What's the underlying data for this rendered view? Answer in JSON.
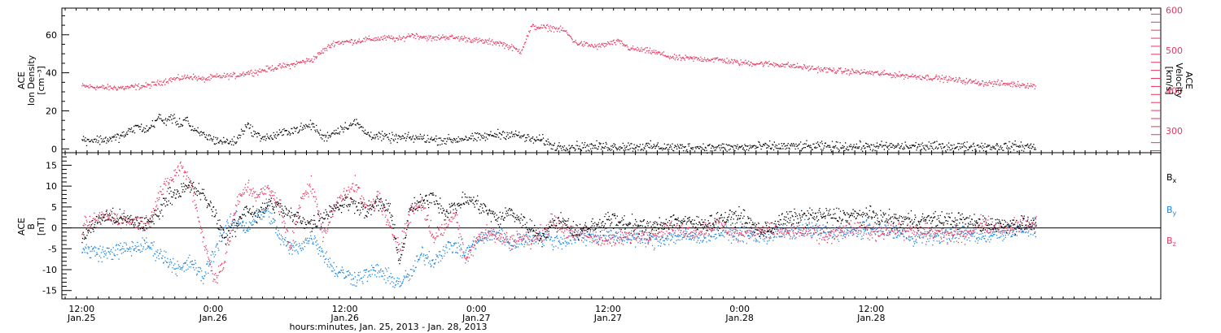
{
  "chart_data": [
    {
      "type": "scatter",
      "panel": "top",
      "ylabel_left": [
        "ACE",
        "Ion Density",
        "[cm⁻³]"
      ],
      "ylabel_right": [
        "ACE",
        "Velocity",
        "[km/s]"
      ],
      "ylim_left": [
        -2,
        74
      ],
      "ylim_right": [
        245,
        605
      ],
      "yticks_left": [
        0,
        20,
        40,
        60
      ],
      "yticks_right": [
        300,
        400,
        500,
        600
      ],
      "colors": {
        "density": "#000000",
        "velocity": "#e8365e"
      },
      "series": [
        {
          "axis": "left",
          "color": "#000000",
          "noise": 2.0,
          "t": [
            0,
            4,
            6,
            8,
            10,
            12,
            14,
            15,
            16,
            18,
            19,
            20,
            22,
            24,
            26,
            28,
            30,
            32,
            34,
            36,
            38,
            40,
            42,
            44,
            46,
            48,
            50,
            52,
            54,
            56,
            58,
            60,
            62,
            64,
            66,
            68,
            70,
            72,
            74,
            76,
            78,
            80,
            82,
            84,
            86,
            88,
            90,
            92,
            94,
            96,
            100,
            104,
            108,
            112,
            116,
            120,
            124,
            128,
            132,
            136,
            140,
            144,
            148,
            152,
            156,
            160,
            164,
            168,
            172,
            174
          ],
          "v": [
            5,
            5,
            6,
            8,
            12,
            10,
            17,
            14,
            17,
            13,
            17,
            10,
            8,
            5,
            4,
            4,
            13,
            7,
            6,
            8,
            10,
            11,
            13,
            6,
            9,
            12,
            14,
            8,
            7,
            6,
            6,
            6,
            6,
            5,
            5,
            5,
            6,
            6,
            7,
            8,
            8,
            7,
            5,
            5,
            1.5,
            1.5,
            1.5,
            1.5,
            1.5,
            1.5,
            1.5,
            1.5,
            1,
            1,
            1,
            1,
            1.5,
            1.5,
            1.5,
            1.5,
            1.5,
            1.5,
            1.5,
            1.5,
            1.5,
            1.5,
            1.5,
            1.5,
            1.5,
            1.5
          ]
        },
        {
          "axis": "right",
          "color": "#e8365e",
          "noise": 6,
          "t": [
            0,
            4,
            8,
            12,
            14,
            16,
            18,
            20,
            22,
            24,
            26,
            28,
            30,
            32,
            34,
            36,
            38,
            40,
            42,
            44,
            46,
            48,
            50,
            52,
            54,
            56,
            58,
            60,
            62,
            64,
            66,
            68,
            70,
            72,
            74,
            76,
            78,
            80,
            82,
            84,
            86,
            88,
            90,
            92,
            94,
            96,
            98,
            100,
            104,
            108,
            112,
            116,
            120,
            124,
            128,
            132,
            136,
            140,
            144,
            148,
            152,
            156,
            160,
            164,
            168,
            172,
            174
          ],
          "v": [
            412,
            408,
            408,
            413,
            420,
            428,
            432,
            436,
            428,
            434,
            437,
            438,
            445,
            448,
            455,
            460,
            464,
            472,
            478,
            500,
            520,
            522,
            524,
            528,
            530,
            532,
            528,
            540,
            535,
            530,
            535,
            532,
            530,
            525,
            522,
            520,
            510,
            498,
            560,
            558,
            556,
            550,
            520,
            515,
            510,
            518,
            522,
            505,
            498,
            482,
            480,
            478,
            470,
            468,
            465,
            458,
            452,
            448,
            445,
            440,
            436,
            432,
            426,
            420,
            418,
            415,
            412
          ]
        }
      ]
    },
    {
      "type": "scatter",
      "panel": "bottom",
      "ylabel": [
        "ACE",
        "B",
        "[nT]"
      ],
      "ylim": [
        -17,
        18
      ],
      "yticks": [
        -15,
        -10,
        -5,
        0,
        5,
        10,
        15
      ],
      "legend": [
        {
          "label": "B",
          "sub": "x",
          "color": "#000000"
        },
        {
          "label": "B",
          "sub": "y",
          "color": "#1c86e0"
        },
        {
          "label": "B",
          "sub": "z",
          "color": "#e8365e"
        }
      ],
      "series": [
        {
          "color": "#000000",
          "noise": 1.6,
          "t": [
            0,
            4,
            8,
            12,
            14,
            16,
            18,
            20,
            22,
            24,
            26,
            28,
            30,
            32,
            34,
            36,
            38,
            40,
            42,
            44,
            46,
            48,
            50,
            52,
            54,
            56,
            58,
            60,
            62,
            64,
            66,
            68,
            70,
            72,
            74,
            76,
            78,
            80,
            82,
            84,
            86,
            88,
            90,
            92,
            96,
            100,
            104,
            108,
            112,
            116,
            120,
            124,
            128,
            132,
            136,
            140,
            144,
            148,
            152,
            156,
            160,
            164,
            168,
            172,
            174
          ],
          "v": [
            -2,
            3,
            2,
            1,
            4,
            8,
            9,
            10,
            8,
            4,
            -2,
            0,
            5,
            3,
            6,
            5,
            3,
            2,
            1,
            3,
            5,
            6,
            6,
            4,
            6,
            5,
            -8,
            5,
            6,
            8,
            4,
            5,
            7,
            6,
            4,
            2,
            4,
            2,
            0,
            -2,
            1,
            2,
            -1,
            0,
            2,
            1,
            0,
            2,
            1,
            2,
            3,
            -1,
            2,
            3,
            3,
            3,
            3,
            2,
            2,
            2,
            2,
            1,
            1,
            1,
            1
          ]
        },
        {
          "color": "#1c86e0",
          "noise": 1.6,
          "t": [
            0,
            4,
            8,
            12,
            14,
            16,
            18,
            20,
            22,
            24,
            26,
            28,
            30,
            32,
            34,
            36,
            38,
            40,
            42,
            44,
            46,
            48,
            50,
            52,
            54,
            56,
            58,
            60,
            62,
            64,
            66,
            68,
            70,
            72,
            74,
            76,
            78,
            80,
            82,
            84,
            86,
            88,
            90,
            92,
            96,
            100,
            104,
            108,
            112,
            116,
            120,
            124,
            128,
            132,
            136,
            140,
            144,
            148,
            152,
            156,
            160,
            164,
            168,
            172,
            174
          ],
          "v": [
            -5,
            -6,
            -5,
            -4,
            -6,
            -8,
            -10,
            -8,
            -12,
            -6,
            0,
            2,
            0,
            3,
            4,
            -2,
            -5,
            -4,
            -2,
            -6,
            -10,
            -11,
            -12,
            -11,
            -10,
            -12,
            -13,
            -11,
            -6,
            -8,
            -5,
            -4,
            -6,
            -3,
            -2,
            -1,
            -4,
            -3,
            -2,
            -2,
            -3,
            -3,
            -2,
            -2,
            -2,
            -2,
            -3,
            -2,
            -2,
            -1,
            -1,
            -2,
            -1,
            0,
            -1,
            -1,
            0,
            -1,
            -2,
            -2,
            -1,
            -2,
            -1,
            0,
            0
          ]
        },
        {
          "color": "#e8365e",
          "noise": 1.6,
          "t": [
            0,
            4,
            8,
            12,
            14,
            16,
            18,
            20,
            22,
            24,
            26,
            28,
            30,
            32,
            34,
            36,
            38,
            40,
            42,
            44,
            46,
            48,
            50,
            52,
            54,
            56,
            58,
            60,
            62,
            64,
            66,
            68,
            70,
            72,
            74,
            76,
            78,
            80,
            82,
            84,
            86,
            88,
            90,
            92,
            96,
            100,
            104,
            108,
            112,
            116,
            120,
            124,
            128,
            132,
            136,
            140,
            144,
            148,
            152,
            156,
            160,
            164,
            168,
            172,
            174
          ],
          "v": [
            0,
            3,
            2,
            1,
            8,
            11,
            15,
            10,
            -2,
            -12,
            -8,
            5,
            10,
            8,
            9,
            6,
            -5,
            8,
            10,
            -2,
            5,
            9,
            10,
            4,
            8,
            0,
            -4,
            4,
            6,
            -2,
            0,
            4,
            -8,
            -2,
            -1,
            -2,
            -3,
            -2,
            -3,
            -1,
            2,
            0,
            -2,
            -1,
            -3,
            -2,
            -1,
            0,
            -1,
            1,
            -2,
            0,
            -1,
            -1,
            -2,
            0,
            -1,
            0,
            -1,
            -1,
            -2,
            1,
            0,
            1,
            1
          ]
        }
      ]
    }
  ],
  "xaxis": {
    "tlim": [
      -3.6,
      196.8
    ],
    "ticks": [
      {
        "t": 0,
        "time": "12:00",
        "date": "Jan.25"
      },
      {
        "t": 24,
        "time": "0:00",
        "date": "Jan.26"
      },
      {
        "t": 48,
        "time": "12:00",
        "date": "Jan.26"
      },
      {
        "t": 72,
        "time": "0:00",
        "date": "Jan.27"
      },
      {
        "t": 96,
        "time": "12:00",
        "date": "Jan.27"
      },
      {
        "t": 120,
        "time": "0:00",
        "date": "Jan.28"
      },
      {
        "t": 144,
        "time": "12:00",
        "date": "Jan.28"
      }
    ],
    "xlabel": "hours:minutes, Jan. 25, 2013 - Jan. 28, 2013"
  }
}
